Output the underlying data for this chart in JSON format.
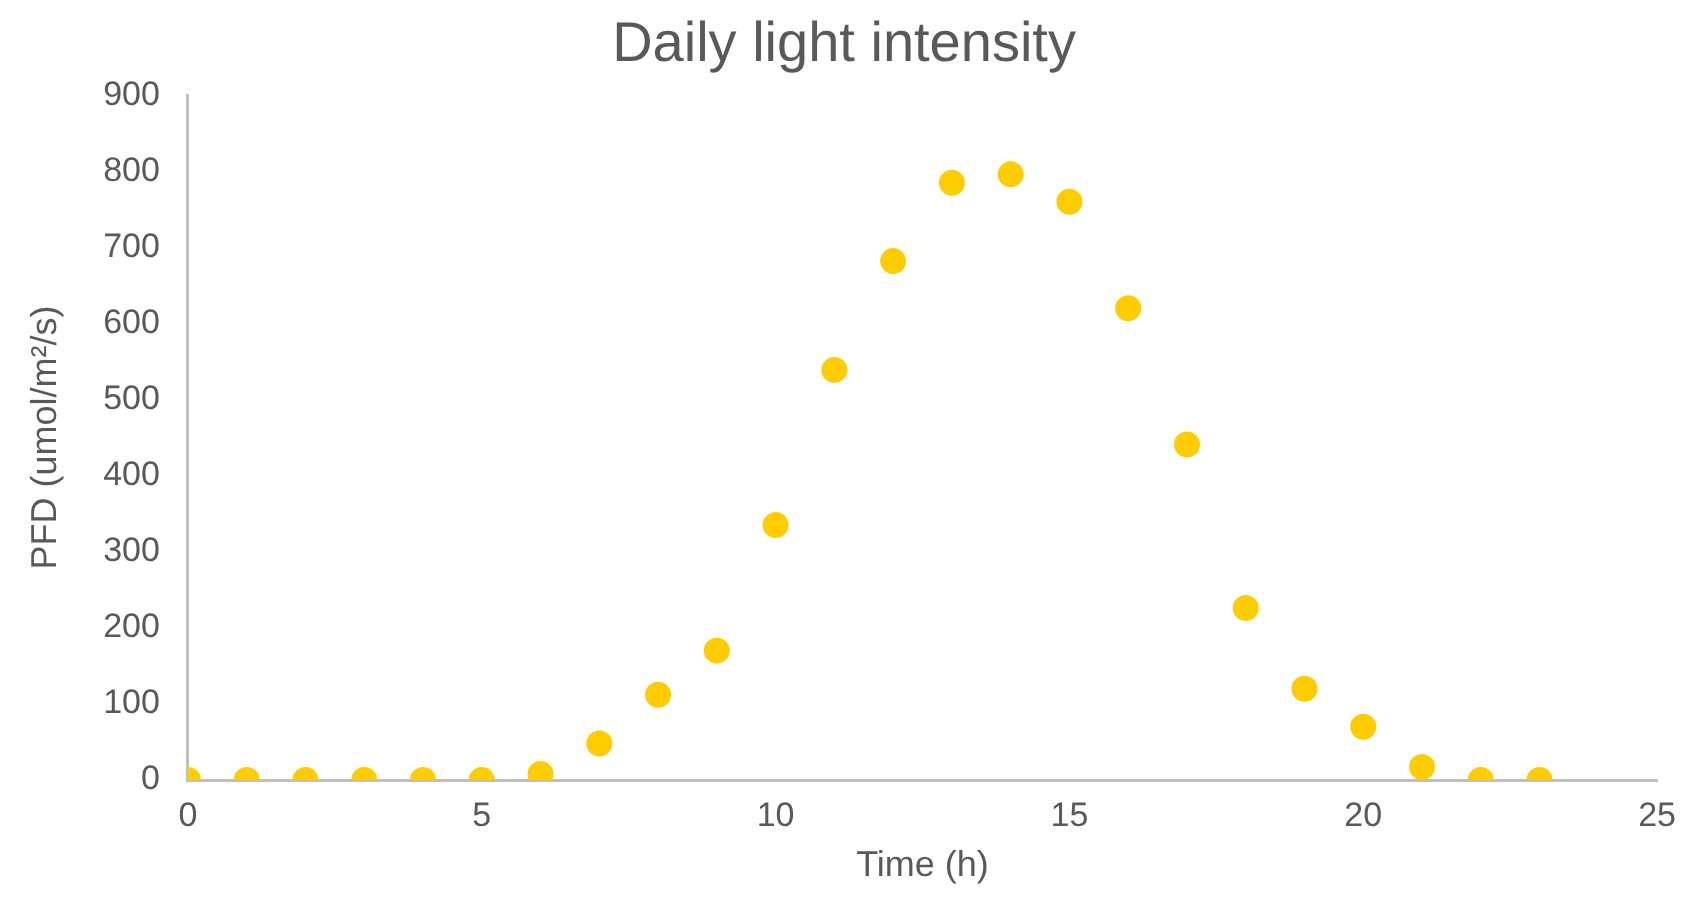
{
  "chart_data": {
    "type": "scatter",
    "title": "Daily light intensity",
    "xlabel": "Time (h)",
    "ylabel": "PFD (umol/m²/s)",
    "x": [
      0,
      1,
      2,
      3,
      4,
      5,
      6,
      7,
      8,
      9,
      10,
      11,
      12,
      13,
      14,
      15,
      16,
      17,
      18,
      19,
      20,
      21,
      22,
      23
    ],
    "values": [
      0,
      0,
      0,
      0,
      0,
      0,
      8,
      48,
      112,
      170,
      335,
      539,
      682,
      785,
      796,
      760,
      620,
      441,
      226,
      120,
      70,
      17,
      0,
      0
    ],
    "color": "#ffcc00",
    "marker": "circle",
    "xlim": [
      0,
      25
    ],
    "xticks": [
      0,
      5,
      10,
      15,
      20,
      25
    ],
    "ylim": [
      0,
      900
    ],
    "yticks": [
      0,
      100,
      200,
      300,
      400,
      500,
      600,
      700,
      800,
      900
    ],
    "grid": false,
    "legend": false
  }
}
